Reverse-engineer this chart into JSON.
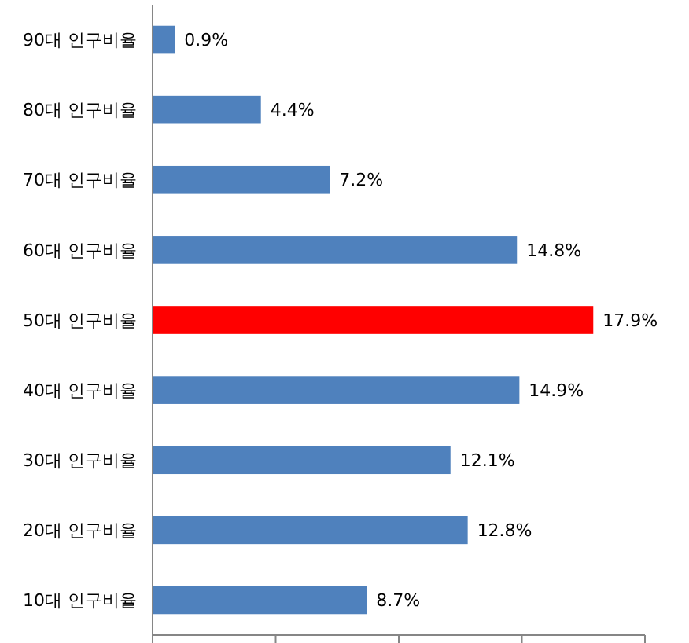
{
  "chart_data": {
    "type": "bar",
    "orientation": "horizontal",
    "categories": [
      "90대 인구비율",
      "80대 인구비율",
      "70대 인구비율",
      "60대 인구비율",
      "50대 인구비율",
      "40대 인구비율",
      "30대 인구비율",
      "20대 인구비율",
      "10대 인구비율"
    ],
    "values": [
      0.9,
      4.4,
      7.2,
      14.8,
      17.9,
      14.9,
      12.1,
      12.8,
      8.7
    ],
    "colors": [
      "#4f81bd",
      "#4f81bd",
      "#4f81bd",
      "#4f81bd",
      "#ff0000",
      "#4f81bd",
      "#4f81bd",
      "#4f81bd",
      "#4f81bd"
    ],
    "value_labels": [
      "0.9%",
      "4.4%",
      "7.2%",
      "14.8%",
      "17.9%",
      "14.9%",
      "12.1%",
      "12.8%",
      "8.7%"
    ],
    "xlim": [
      0,
      20
    ],
    "xticks": [
      {
        "value": 0,
        "label": null
      },
      {
        "value": 5,
        "label": null
      },
      {
        "value": 10,
        "label": null
      },
      {
        "value": 15,
        "label": null
      },
      {
        "value": 20,
        "label": null
      }
    ],
    "tick_labels": "y"
  }
}
